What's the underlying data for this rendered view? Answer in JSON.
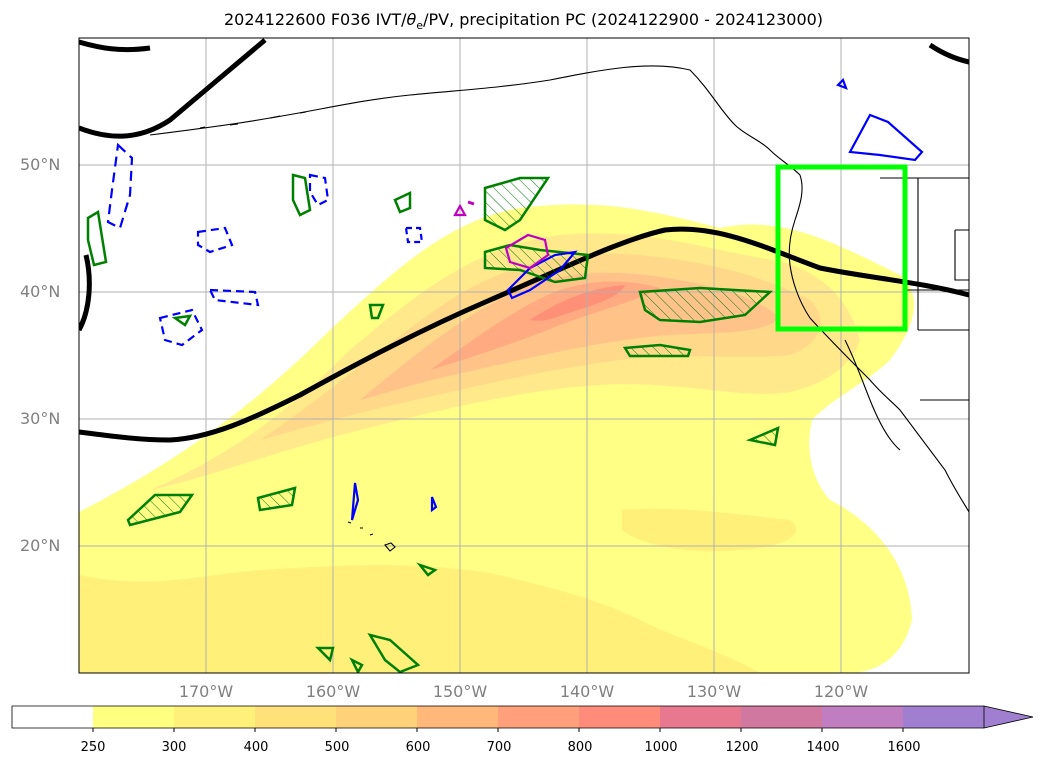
{
  "title": {
    "prefix": "2024122600 F036 IVT/",
    "theta": "θ",
    "theta_sub": "e",
    "suffix": "/PV, precipitation PC (2024122900 - 2024123000)"
  },
  "axes": {
    "lat_labels": [
      "50°N",
      "40°N",
      "30°N",
      "20°N"
    ],
    "lon_labels": [
      "170°W",
      "160°W",
      "150°W",
      "140°W",
      "130°W",
      "120°W"
    ]
  },
  "colorbar": {
    "ticks": [
      "250",
      "300",
      "400",
      "500",
      "600",
      "700",
      "800",
      "1000",
      "1200",
      "1400",
      "1600"
    ],
    "colors": [
      "#ffffff",
      "#ffff80",
      "#fff07a",
      "#ffe17a",
      "#ffd27a",
      "#ffb87a",
      "#ffa07a",
      "#ff8c7a",
      "#e87890",
      "#d078a0",
      "#c07ec0",
      "#a07ed0"
    ],
    "extend": "max"
  },
  "overlays": {
    "highlight_box_color": "#00ff00",
    "ivt_fill_colors": [
      "#ffff80",
      "#ffe98a",
      "#ffd88a",
      "#ffc38a",
      "#ffaa80",
      "#ff9078"
    ],
    "precip_contour_color": "#008000",
    "pv_contour_color": "#0000ff",
    "theta_contour_color": "#000000",
    "magenta_contour_color": "#c000c0"
  }
}
